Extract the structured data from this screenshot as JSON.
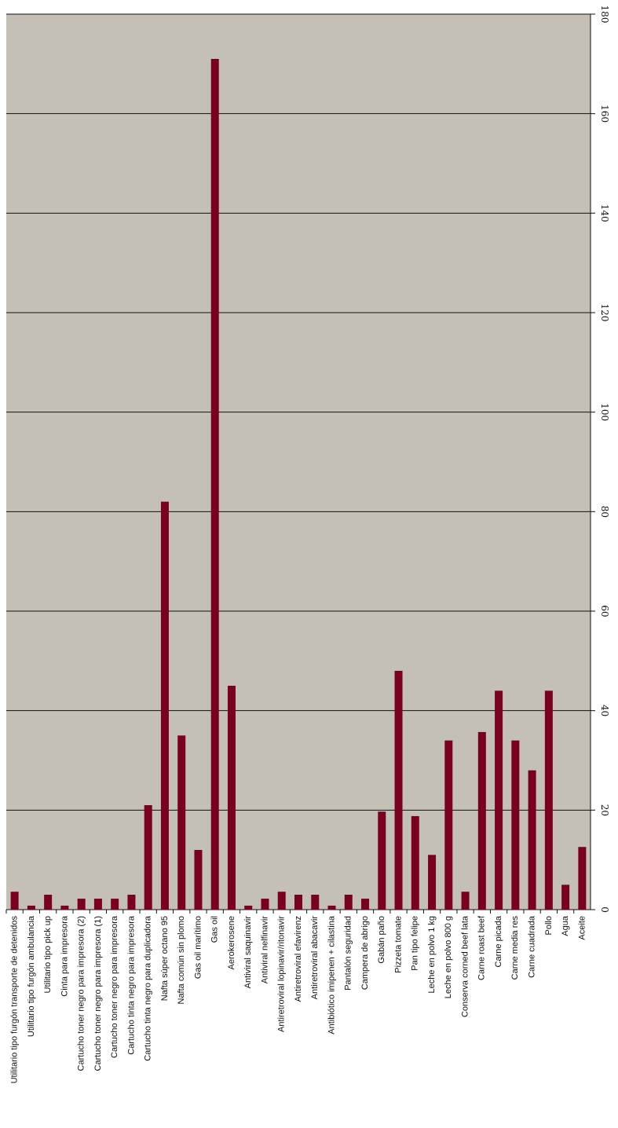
{
  "chart_data": {
    "type": "bar",
    "categories": [
      "Utilitario tipo furgón transporte de detenidos",
      "Utilitario tipo furgón ambulancia",
      "Utilitario tipo pick up",
      "Cinta para impresora",
      "Cartucho toner negro para impresora (2)",
      "Cartucho toner negro para impresora (1)",
      "Cartucho toner negro para impresora",
      "Cartucho tinta negro para impresora",
      "Cartucho tinta negro para duplicadora",
      "Nafta súper octano 95",
      "Nafta común sin plomo",
      "Gas oil marítimo",
      "Gas oil",
      "Aerokerosene",
      "Antiviral saquinavir",
      "Antiviral nelfinavir",
      "Antiretroviral lopinavir/ritonavir",
      "Antiretroviral efavirenz",
      "Antiretroviral abacavir",
      "Antibiótico imipenen + cilastina",
      "Pantalón seguridad",
      "Campera de abrigo",
      "Gabán paño",
      "Pizzeta tomate",
      "Pan tipo felipe",
      "Leche en polvo 1 kg",
      "Leche en polvo 800 g",
      "Conserva corned beef lata",
      "Carne roast beef",
      "Carne picada",
      "Carne media res",
      "Carne cuadrada",
      "Pollo",
      "Agua",
      "Aceite"
    ],
    "values": [
      3.6,
      0.8,
      3,
      0.8,
      2.2,
      2.2,
      2.2,
      3,
      21,
      82,
      35,
      12,
      171,
      45,
      0.8,
      2.2,
      3.6,
      3,
      3,
      0.8,
      3,
      2.2,
      19.7,
      48,
      18.8,
      11,
      34,
      3.6,
      35.7,
      44,
      34,
      28,
      44,
      5,
      12.6
    ],
    "color": "#7a0020",
    "ylim": [
      0,
      180
    ],
    "yticks": [
      0,
      20,
      40,
      60,
      80,
      100,
      120,
      140,
      160,
      180
    ],
    "grid": true
  }
}
